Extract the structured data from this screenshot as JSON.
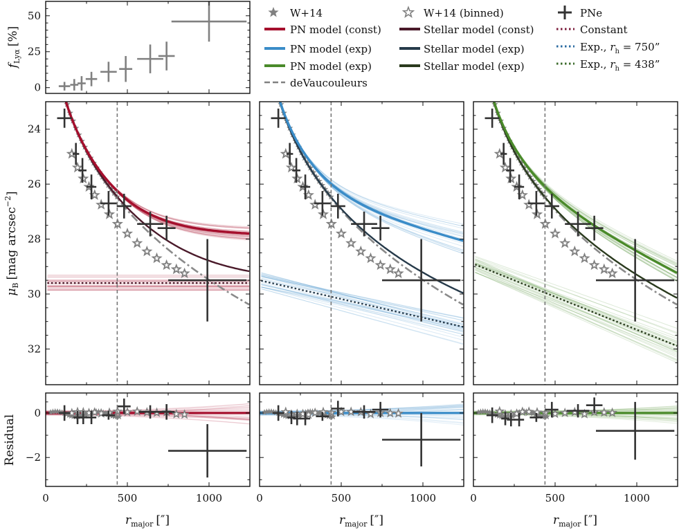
{
  "figure": {
    "x_axis_label_text": "r",
    "x_axis_label_sub": "major",
    "x_axis_label_unit": "[″]"
  },
  "legend": {
    "entries": [
      {
        "key": "w14",
        "label": "W+14",
        "style": "star-filled",
        "color": "#808080"
      },
      {
        "key": "pn_const",
        "label": "PN model (const)",
        "style": "thick-line",
        "color": "#a50f2d"
      },
      {
        "key": "pn_exp_blue",
        "label": "PN model (exp)",
        "style": "thick-line",
        "color": "#3a8cc8"
      },
      {
        "key": "pn_exp_green",
        "label": "PN model (exp)",
        "style": "thick-line",
        "color": "#4a8a2a"
      },
      {
        "key": "devauc",
        "label": "deVaucouleurs",
        "style": "dashed-line",
        "color": "#808080"
      },
      {
        "key": "w14_binned",
        "label": "W+14 (binned)",
        "style": "star-open",
        "color": "#808080"
      },
      {
        "key": "stellar_const",
        "label": "Stellar model (const)",
        "style": "thick-line",
        "color": "#4a1a2a"
      },
      {
        "key": "stellar_exp_blue",
        "label": "Stellar model (exp)",
        "style": "thick-line",
        "color": "#263a4a"
      },
      {
        "key": "stellar_exp_green",
        "label": "Stellar model (exp)",
        "style": "thick-line",
        "color": "#2a3a1e"
      },
      {
        "key": "pne",
        "label": "PNe",
        "style": "cross",
        "color": "#333333"
      },
      {
        "key": "constant",
        "label": "Constant",
        "style": "dotted-line",
        "color": "#7a1a3a"
      },
      {
        "key": "exp750",
        "label": "Exp., r_h = 750″",
        "main": "Exp., ",
        "sym": "r",
        "sub": "h",
        "tail": " = 750”",
        "style": "dotted-line",
        "color": "#2a6aa0"
      },
      {
        "key": "exp438",
        "label": "Exp., r_h = 438″",
        "main": "Exp., ",
        "sym": "r",
        "sub": "h",
        "tail": " = 438”",
        "style": "dotted-line",
        "color": "#3a6a2a"
      }
    ]
  },
  "chart_data": [
    {
      "type": "scatter",
      "id": "lya_fraction",
      "ylabel": "f_Lyα [%]",
      "ylabel_main": "f",
      "ylabel_sub": "Lyα",
      "ylabel_unit": "[%]",
      "xlim": [
        0,
        1250
      ],
      "ylim": [
        -4,
        60
      ],
      "yticks": [
        0,
        25,
        50
      ],
      "yticklabels": [
        "0",
        "25",
        "50"
      ],
      "points": [
        {
          "x": 115,
          "y": 1,
          "xerr": 35,
          "yerr": 3
        },
        {
          "x": 175,
          "y": 2,
          "xerr": 25,
          "yerr": 4
        },
        {
          "x": 220,
          "y": 3,
          "xerr": 25,
          "yerr": 5
        },
        {
          "x": 280,
          "y": 6,
          "xerr": 35,
          "yerr": 5
        },
        {
          "x": 385,
          "y": 11,
          "xerr": 50,
          "yerr": 7
        },
        {
          "x": 490,
          "y": 13,
          "xerr": 40,
          "yerr": 9
        },
        {
          "x": 640,
          "y": 20,
          "xerr": 80,
          "yerr": 10
        },
        {
          "x": 740,
          "y": 22,
          "xerr": 50,
          "yerr": 10
        },
        {
          "x": 1000,
          "y": 46,
          "xerr": 230,
          "yerr": 14
        }
      ]
    },
    {
      "type": "line",
      "id": "sb_const",
      "variant": "const",
      "ylabel": "μ_B [mag arcsec^-2]",
      "ylabel_main": "μ",
      "ylabel_sub": "B",
      "ylabel_unit": "[mag arcsec",
      "ylabel_sup": "−2",
      "ylabel_close": "]",
      "xlim": [
        0,
        1250
      ],
      "ylim": [
        33.3,
        23.0
      ],
      "yticks": [
        24,
        26,
        28,
        30,
        32
      ],
      "yticklabels": [
        "24",
        "26",
        "28",
        "30",
        "32"
      ],
      "pn_color": "#a50f2d",
      "stellar_color": "#4a1a2a",
      "const_level": 29.6,
      "pn_model": {
        "r_eff": 75,
        "mu_eff": 21.9,
        "c": 27.9
      }
    },
    {
      "type": "line",
      "id": "sb_exp750",
      "variant": "exp",
      "xlim": [
        0,
        1250
      ],
      "ylim": [
        33.3,
        23.0
      ],
      "yticks": [
        24,
        26,
        28,
        30,
        32
      ],
      "yticklabels": [
        "24",
        "26",
        "28",
        "30",
        "32"
      ],
      "pn_color": "#3a8cc8",
      "stellar_color": "#263a4a",
      "exp_start": 29.5,
      "exp_end": 31.2,
      "pn_model": {
        "r_eff": 75,
        "mu_eff": 21.9,
        "exp_start": 26.4,
        "exp_end": 28.2
      }
    },
    {
      "type": "line",
      "id": "sb_exp438",
      "variant": "exp",
      "xlim": [
        0,
        1250
      ],
      "ylim": [
        33.3,
        23.0
      ],
      "yticks": [
        24,
        26,
        28,
        30,
        32
      ],
      "yticklabels": [
        "24",
        "26",
        "28",
        "30",
        "32"
      ],
      "pn_color": "#4a8a2a",
      "stellar_color": "#2a3a1e",
      "exp_start": 28.9,
      "exp_end": 31.9,
      "pn_model": {
        "r_eff": 75,
        "mu_eff": 21.9,
        "exp_start": 26.0,
        "exp_end": 29.7
      }
    },
    {
      "type": "scatter",
      "id": "residual_const",
      "ylabel": "Residual",
      "xlim": [
        0,
        1250
      ],
      "ylim": [
        -3.3,
        0.9
      ],
      "yticks": [
        -2,
        0
      ],
      "yticklabels": [
        "−2",
        "0"
      ],
      "xticks": [
        0,
        500,
        1000
      ],
      "xticklabels": [
        "0",
        "500",
        "1000"
      ],
      "color": "#a50f2d",
      "points": [
        {
          "x": 115,
          "y": 0.0,
          "xerr": 35,
          "yerr": 0.35
        },
        {
          "x": 195,
          "y": -0.2,
          "xerr": 25,
          "yerr": 0.3
        },
        {
          "x": 230,
          "y": -0.2,
          "xerr": 25,
          "yerr": 0.3
        },
        {
          "x": 280,
          "y": -0.2,
          "xerr": 30,
          "yerr": 0.3
        },
        {
          "x": 385,
          "y": -0.1,
          "xerr": 40,
          "yerr": 0.2
        },
        {
          "x": 480,
          "y": 0.3,
          "xerr": 40,
          "yerr": 0.35
        },
        {
          "x": 640,
          "y": 0.05,
          "xerr": 70,
          "yerr": 0.3
        },
        {
          "x": 740,
          "y": 0.05,
          "xerr": 50,
          "yerr": 0.35
        },
        {
          "x": 990,
          "y": -1.7,
          "xerr": 240,
          "yerr": 1.2
        }
      ]
    },
    {
      "type": "scatter",
      "id": "residual_exp750",
      "xlim": [
        0,
        1250
      ],
      "ylim": [
        -3.3,
        0.9
      ],
      "yticks": [
        -2,
        0
      ],
      "xticks": [
        0,
        500,
        1000
      ],
      "xticklabels": [
        "0",
        "500",
        "1000"
      ],
      "color": "#3a8cc8",
      "points": [
        {
          "x": 115,
          "y": 0.0,
          "xerr": 35,
          "yerr": 0.35
        },
        {
          "x": 195,
          "y": -0.2,
          "xerr": 25,
          "yerr": 0.3
        },
        {
          "x": 230,
          "y": -0.25,
          "xerr": 25,
          "yerr": 0.3
        },
        {
          "x": 280,
          "y": -0.25,
          "xerr": 30,
          "yerr": 0.3
        },
        {
          "x": 385,
          "y": -0.15,
          "xerr": 40,
          "yerr": 0.2
        },
        {
          "x": 480,
          "y": 0.2,
          "xerr": 40,
          "yerr": 0.35
        },
        {
          "x": 640,
          "y": 0.05,
          "xerr": 70,
          "yerr": 0.3
        },
        {
          "x": 740,
          "y": 0.15,
          "xerr": 50,
          "yerr": 0.35
        },
        {
          "x": 990,
          "y": -1.2,
          "xerr": 240,
          "yerr": 1.2
        }
      ]
    },
    {
      "type": "scatter",
      "id": "residual_exp438",
      "xlim": [
        0,
        1250
      ],
      "ylim": [
        -3.3,
        0.9
      ],
      "yticks": [
        -2,
        0
      ],
      "xticks": [
        0,
        500,
        1000
      ],
      "xticklabels": [
        "0",
        "500",
        "1000"
      ],
      "color": "#4a8a2a",
      "points": [
        {
          "x": 115,
          "y": -0.1,
          "xerr": 35,
          "yerr": 0.35
        },
        {
          "x": 195,
          "y": -0.25,
          "xerr": 25,
          "yerr": 0.3
        },
        {
          "x": 230,
          "y": -0.3,
          "xerr": 25,
          "yerr": 0.3
        },
        {
          "x": 280,
          "y": -0.3,
          "xerr": 30,
          "yerr": 0.3
        },
        {
          "x": 385,
          "y": -0.2,
          "xerr": 40,
          "yerr": 0.2
        },
        {
          "x": 480,
          "y": 0.15,
          "xerr": 40,
          "yerr": 0.35
        },
        {
          "x": 640,
          "y": 0.1,
          "xerr": 70,
          "yerr": 0.3
        },
        {
          "x": 740,
          "y": 0.35,
          "xerr": 50,
          "yerr": 0.35
        },
        {
          "x": 990,
          "y": -0.8,
          "xerr": 240,
          "yerr": 1.3
        }
      ]
    }
  ],
  "shared_data": {
    "vline_x": 438,
    "devauc": {
      "r_eff": 75,
      "mu_eff": 21.9
    },
    "stellar_const_model": {
      "r_eff": 75,
      "mu_eff": 21.9
    },
    "w14_binned": [
      {
        "x": 160,
        "y": 24.9
      },
      {
        "x": 195,
        "y": 25.4
      },
      {
        "x": 230,
        "y": 25.8
      },
      {
        "x": 265,
        "y": 26.1
      },
      {
        "x": 300,
        "y": 26.4
      },
      {
        "x": 340,
        "y": 26.75
      },
      {
        "x": 390,
        "y": 27.1
      },
      {
        "x": 440,
        "y": 27.45
      },
      {
        "x": 500,
        "y": 27.8
      },
      {
        "x": 560,
        "y": 28.15
      },
      {
        "x": 620,
        "y": 28.45
      },
      {
        "x": 680,
        "y": 28.7
      },
      {
        "x": 740,
        "y": 28.95
      },
      {
        "x": 800,
        "y": 29.1
      },
      {
        "x": 850,
        "y": 29.25
      }
    ],
    "pne": [
      {
        "x": 115,
        "y": 23.6,
        "xerr": 45,
        "yerr": 0.35
      },
      {
        "x": 185,
        "y": 24.9,
        "xerr": 20,
        "yerr": 0.4
      },
      {
        "x": 225,
        "y": 25.5,
        "xerr": 25,
        "yerr": 0.45
      },
      {
        "x": 280,
        "y": 26.1,
        "xerr": 30,
        "yerr": 0.45
      },
      {
        "x": 385,
        "y": 26.7,
        "xerr": 50,
        "yerr": 0.45
      },
      {
        "x": 480,
        "y": 26.8,
        "xerr": 45,
        "yerr": 0.45
      },
      {
        "x": 640,
        "y": 27.45,
        "xerr": 80,
        "yerr": 0.45
      },
      {
        "x": 740,
        "y": 27.6,
        "xerr": 55,
        "yerr": 0.45
      },
      {
        "x": 990,
        "y": 29.5,
        "xerr": 240,
        "yerr": 1.5
      }
    ]
  }
}
